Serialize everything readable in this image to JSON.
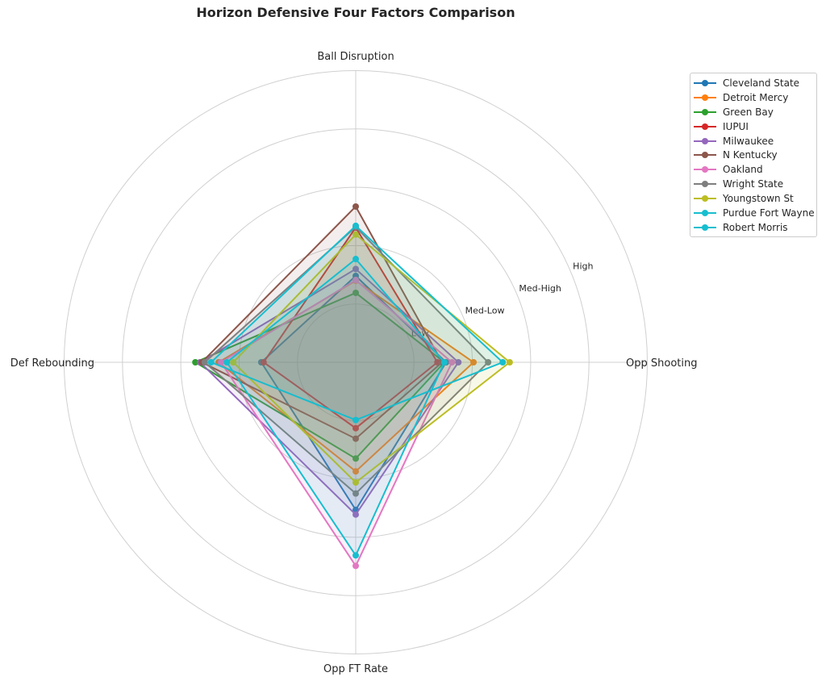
{
  "chart_data": {
    "type": "radar",
    "title": "Horizon Defensive Four Factors Comparison",
    "axes": [
      "Ball Disruption",
      "Opp Shooting",
      "Opp FT Rate",
      "Def Rebounding"
    ],
    "rlim": [
      0,
      5
    ],
    "rticks": [
      1,
      2,
      3,
      4
    ],
    "rtick_labels": [
      "Low",
      "Med-Low",
      "Med-High",
      "High"
    ],
    "grid": true,
    "legend": "upper-right outside",
    "series": [
      {
        "name": "Cleveland State",
        "color": "#1f77b4",
        "values": [
          1.48,
          1.55,
          2.53,
          1.62
        ]
      },
      {
        "name": "Detroit Mercy",
        "color": "#ff7f0e",
        "values": [
          1.4,
          2.02,
          1.87,
          2.35
        ]
      },
      {
        "name": "Green Bay",
        "color": "#2ca02c",
        "values": [
          1.19,
          1.52,
          1.65,
          2.75
        ]
      },
      {
        "name": "IUPUI",
        "color": "#d62728",
        "values": [
          2.31,
          1.4,
          1.13,
          1.58
        ]
      },
      {
        "name": "Milwaukee",
        "color": "#9467bd",
        "values": [
          1.6,
          1.76,
          2.61,
          2.67
        ]
      },
      {
        "name": "N Kentucky",
        "color": "#8c564b",
        "values": [
          2.67,
          1.48,
          1.31,
          2.64
        ]
      },
      {
        "name": "Oakland",
        "color": "#e377c2",
        "values": [
          1.41,
          1.65,
          3.49,
          2.31
        ]
      },
      {
        "name": "Wright State",
        "color": "#7f7f7f",
        "values": [
          2.32,
          2.27,
          2.25,
          2.59
        ]
      },
      {
        "name": "Youngstown St",
        "color": "#bcbd22",
        "values": [
          2.19,
          2.64,
          2.06,
          2.1
        ]
      },
      {
        "name": "Purdue Fort Wayne",
        "color": "#17becf",
        "values": [
          2.34,
          2.52,
          0.99,
          2.48
        ]
      },
      {
        "name": "Robert Morris",
        "color": "#17becf",
        "values": [
          1.77,
          1.52,
          3.31,
          2.21
        ]
      }
    ]
  }
}
